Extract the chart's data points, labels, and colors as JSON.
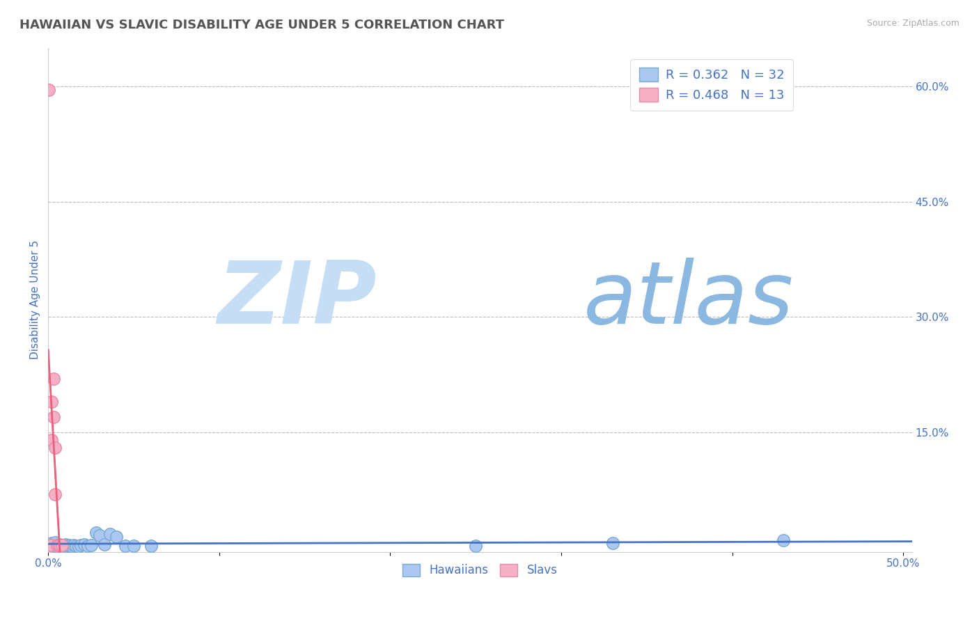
{
  "title": "HAWAIIAN VS SLAVIC DISABILITY AGE UNDER 5 CORRELATION CHART",
  "source_text": "Source: ZipAtlas.com",
  "ylabel": "Disability Age Under 5",
  "xlim": [
    0.0,
    0.505
  ],
  "ylim": [
    -0.005,
    0.65
  ],
  "xticks": [
    0.0,
    0.1,
    0.2,
    0.3,
    0.4,
    0.5
  ],
  "xticklabels": [
    "0.0%",
    "",
    "",
    "",
    "",
    "50.0%"
  ],
  "yticks_right": [
    0.15,
    0.3,
    0.45,
    0.6
  ],
  "yticklabels_right": [
    "15.0%",
    "30.0%",
    "45.0%",
    "60.0%"
  ],
  "hawaiian_x": [
    0.0015,
    0.002,
    0.003,
    0.004,
    0.005,
    0.006,
    0.007,
    0.008,
    0.009,
    0.01,
    0.011,
    0.012,
    0.013,
    0.014,
    0.015,
    0.016,
    0.018,
    0.019,
    0.021,
    0.023,
    0.025,
    0.028,
    0.03,
    0.033,
    0.036,
    0.04,
    0.045,
    0.05,
    0.06,
    0.25,
    0.33,
    0.43
  ],
  "hawaiian_y": [
    0.004,
    0.006,
    0.003,
    0.007,
    0.004,
    0.003,
    0.005,
    0.002,
    0.004,
    0.005,
    0.003,
    0.004,
    0.003,
    0.002,
    0.004,
    0.003,
    0.002,
    0.004,
    0.005,
    0.003,
    0.004,
    0.02,
    0.016,
    0.005,
    0.018,
    0.015,
    0.003,
    0.003,
    0.003,
    0.003,
    0.006,
    0.01
  ],
  "slavic_x": [
    0.0005,
    0.001,
    0.0015,
    0.002,
    0.002,
    0.003,
    0.003,
    0.004,
    0.004,
    0.005,
    0.006,
    0.007,
    0.008
  ],
  "slavic_y": [
    0.595,
    0.004,
    0.004,
    0.19,
    0.14,
    0.22,
    0.17,
    0.13,
    0.07,
    0.004,
    0.004,
    0.004,
    0.004
  ],
  "hawaiian_color": "#aac8f0",
  "hawaiian_edge": "#7aaad0",
  "slavic_color": "#f5b0c5",
  "slavic_edge": "#e88aaa",
  "trend_hawaiian_color": "#4472c4",
  "trend_slavic_solid_color": "#e8607a",
  "trend_slavic_dash_color": "#e8a0b8",
  "legend_text_color": "#4472c4",
  "title_color": "#555555",
  "tick_color": "#4472c4",
  "grid_color": "#bbbbbb",
  "watermark_zip_color": "#c5ddf5",
  "watermark_atlas_color": "#8ab8e0",
  "background_color": "#ffffff",
  "title_fontsize": 13,
  "label_fontsize": 11,
  "tick_fontsize": 11,
  "legend_r_hawaiian": "R = 0.362",
  "legend_n_hawaiian": "N = 32",
  "legend_r_slavic": "R = 0.468",
  "legend_n_slavic": "N = 13"
}
